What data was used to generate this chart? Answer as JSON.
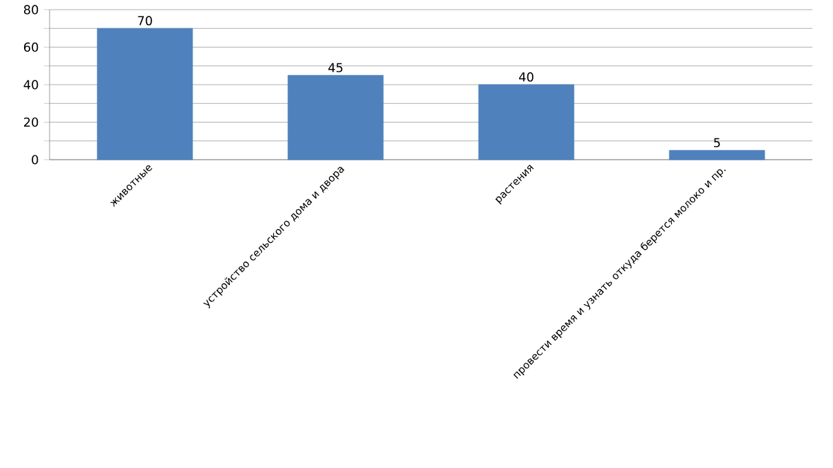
{
  "chart_data": {
    "type": "bar",
    "categories": [
      "животные",
      "устройство сельского дома и двора",
      "растения",
      "провести время и узнать откуда берется молоко и пр."
    ],
    "values": [
      70,
      45,
      40,
      5
    ],
    "color": "#4f81bd",
    "ylim": [
      0,
      80
    ],
    "yticks": [
      0,
      {
        "value": 10,
        "label": null
      },
      20,
      {
        "value": 30,
        "label": null
      },
      40,
      {
        "value": 50,
        "label": null
      },
      60,
      {
        "value": 70,
        "label": null
      },
      80
    ],
    "grid": "y",
    "data_labels": true
  }
}
